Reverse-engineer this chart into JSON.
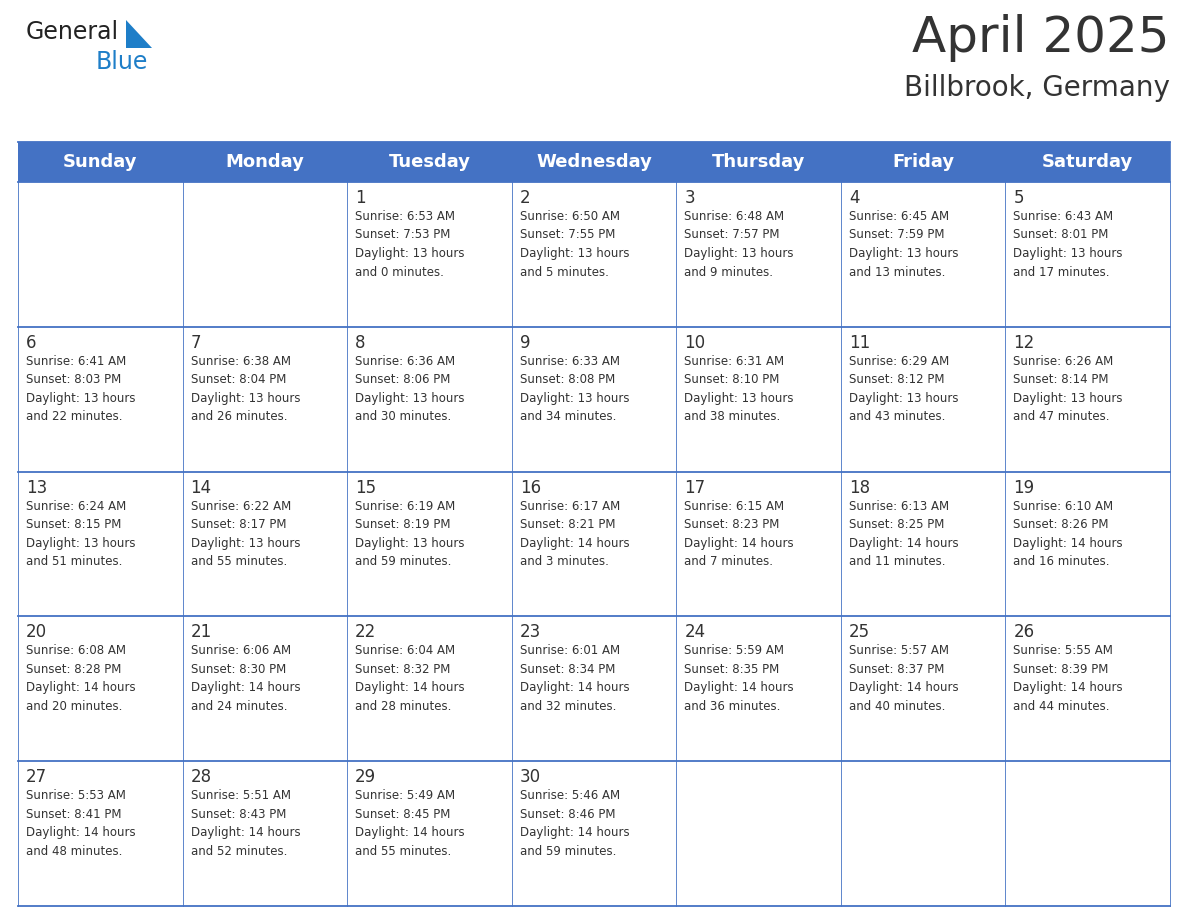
{
  "title": "April 2025",
  "subtitle": "Billbrook, Germany",
  "header_bg": "#4472C4",
  "header_text_color": "#FFFFFF",
  "cell_bg": "#FFFFFF",
  "border_color": "#4472C4",
  "text_color": "#333333",
  "days_of_week": [
    "Sunday",
    "Monday",
    "Tuesday",
    "Wednesday",
    "Thursday",
    "Friday",
    "Saturday"
  ],
  "weeks": [
    [
      {
        "day": "",
        "info": ""
      },
      {
        "day": "",
        "info": ""
      },
      {
        "day": "1",
        "info": "Sunrise: 6:53 AM\nSunset: 7:53 PM\nDaylight: 13 hours\nand 0 minutes."
      },
      {
        "day": "2",
        "info": "Sunrise: 6:50 AM\nSunset: 7:55 PM\nDaylight: 13 hours\nand 5 minutes."
      },
      {
        "day": "3",
        "info": "Sunrise: 6:48 AM\nSunset: 7:57 PM\nDaylight: 13 hours\nand 9 minutes."
      },
      {
        "day": "4",
        "info": "Sunrise: 6:45 AM\nSunset: 7:59 PM\nDaylight: 13 hours\nand 13 minutes."
      },
      {
        "day": "5",
        "info": "Sunrise: 6:43 AM\nSunset: 8:01 PM\nDaylight: 13 hours\nand 17 minutes."
      }
    ],
    [
      {
        "day": "6",
        "info": "Sunrise: 6:41 AM\nSunset: 8:03 PM\nDaylight: 13 hours\nand 22 minutes."
      },
      {
        "day": "7",
        "info": "Sunrise: 6:38 AM\nSunset: 8:04 PM\nDaylight: 13 hours\nand 26 minutes."
      },
      {
        "day": "8",
        "info": "Sunrise: 6:36 AM\nSunset: 8:06 PM\nDaylight: 13 hours\nand 30 minutes."
      },
      {
        "day": "9",
        "info": "Sunrise: 6:33 AM\nSunset: 8:08 PM\nDaylight: 13 hours\nand 34 minutes."
      },
      {
        "day": "10",
        "info": "Sunrise: 6:31 AM\nSunset: 8:10 PM\nDaylight: 13 hours\nand 38 minutes."
      },
      {
        "day": "11",
        "info": "Sunrise: 6:29 AM\nSunset: 8:12 PM\nDaylight: 13 hours\nand 43 minutes."
      },
      {
        "day": "12",
        "info": "Sunrise: 6:26 AM\nSunset: 8:14 PM\nDaylight: 13 hours\nand 47 minutes."
      }
    ],
    [
      {
        "day": "13",
        "info": "Sunrise: 6:24 AM\nSunset: 8:15 PM\nDaylight: 13 hours\nand 51 minutes."
      },
      {
        "day": "14",
        "info": "Sunrise: 6:22 AM\nSunset: 8:17 PM\nDaylight: 13 hours\nand 55 minutes."
      },
      {
        "day": "15",
        "info": "Sunrise: 6:19 AM\nSunset: 8:19 PM\nDaylight: 13 hours\nand 59 minutes."
      },
      {
        "day": "16",
        "info": "Sunrise: 6:17 AM\nSunset: 8:21 PM\nDaylight: 14 hours\nand 3 minutes."
      },
      {
        "day": "17",
        "info": "Sunrise: 6:15 AM\nSunset: 8:23 PM\nDaylight: 14 hours\nand 7 minutes."
      },
      {
        "day": "18",
        "info": "Sunrise: 6:13 AM\nSunset: 8:25 PM\nDaylight: 14 hours\nand 11 minutes."
      },
      {
        "day": "19",
        "info": "Sunrise: 6:10 AM\nSunset: 8:26 PM\nDaylight: 14 hours\nand 16 minutes."
      }
    ],
    [
      {
        "day": "20",
        "info": "Sunrise: 6:08 AM\nSunset: 8:28 PM\nDaylight: 14 hours\nand 20 minutes."
      },
      {
        "day": "21",
        "info": "Sunrise: 6:06 AM\nSunset: 8:30 PM\nDaylight: 14 hours\nand 24 minutes."
      },
      {
        "day": "22",
        "info": "Sunrise: 6:04 AM\nSunset: 8:32 PM\nDaylight: 14 hours\nand 28 minutes."
      },
      {
        "day": "23",
        "info": "Sunrise: 6:01 AM\nSunset: 8:34 PM\nDaylight: 14 hours\nand 32 minutes."
      },
      {
        "day": "24",
        "info": "Sunrise: 5:59 AM\nSunset: 8:35 PM\nDaylight: 14 hours\nand 36 minutes."
      },
      {
        "day": "25",
        "info": "Sunrise: 5:57 AM\nSunset: 8:37 PM\nDaylight: 14 hours\nand 40 minutes."
      },
      {
        "day": "26",
        "info": "Sunrise: 5:55 AM\nSunset: 8:39 PM\nDaylight: 14 hours\nand 44 minutes."
      }
    ],
    [
      {
        "day": "27",
        "info": "Sunrise: 5:53 AM\nSunset: 8:41 PM\nDaylight: 14 hours\nand 48 minutes."
      },
      {
        "day": "28",
        "info": "Sunrise: 5:51 AM\nSunset: 8:43 PM\nDaylight: 14 hours\nand 52 minutes."
      },
      {
        "day": "29",
        "info": "Sunrise: 5:49 AM\nSunset: 8:45 PM\nDaylight: 14 hours\nand 55 minutes."
      },
      {
        "day": "30",
        "info": "Sunrise: 5:46 AM\nSunset: 8:46 PM\nDaylight: 14 hours\nand 59 minutes."
      },
      {
        "day": "",
        "info": ""
      },
      {
        "day": "",
        "info": ""
      },
      {
        "day": "",
        "info": ""
      }
    ]
  ],
  "logo_general_color": "#222222",
  "logo_blue_color": "#1E7EC8",
  "logo_triangle_color": "#1E7EC8",
  "title_fontsize": 36,
  "subtitle_fontsize": 20,
  "header_fontsize": 13,
  "day_num_fontsize": 12,
  "info_fontsize": 8.5
}
